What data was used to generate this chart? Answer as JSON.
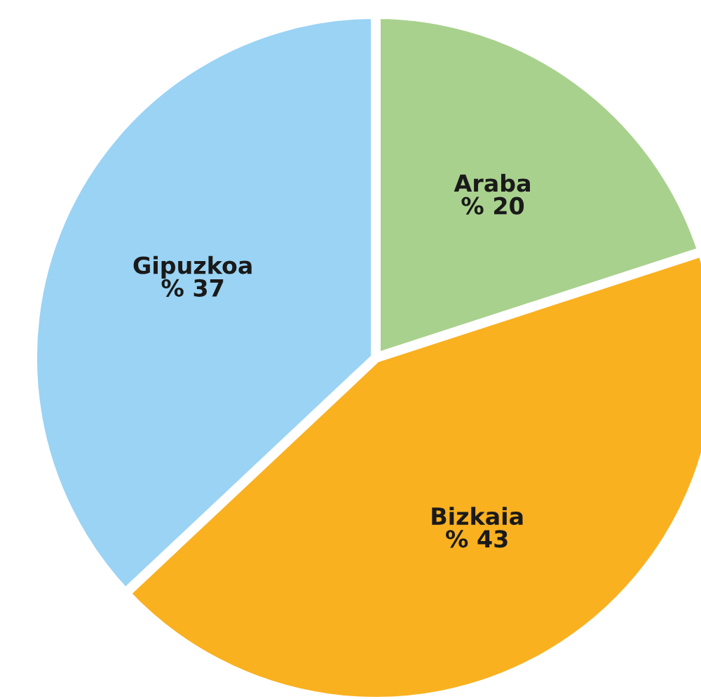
{
  "chart_data": {
    "type": "pie",
    "categories": [
      "Araba",
      "Bizkaia",
      "Gipuzkoa"
    ],
    "values": [
      20,
      43,
      37
    ],
    "value_labels": [
      "% 20",
      "% 43",
      "% 37"
    ],
    "colors": [
      "#a9d18e",
      "#f9b120",
      "#9ad3f4"
    ]
  }
}
